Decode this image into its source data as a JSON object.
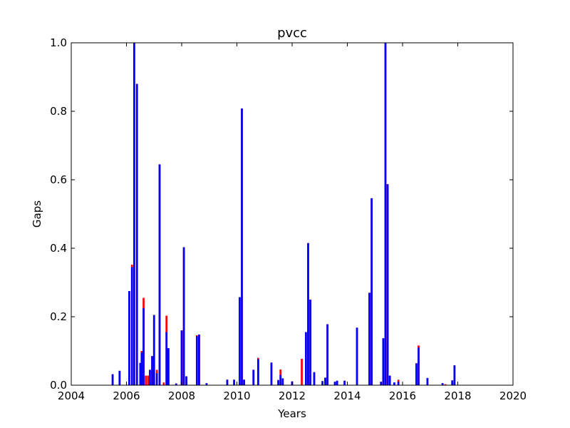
{
  "chart_data": {
    "type": "bar",
    "title": "pvcc",
    "xlabel": "Years",
    "ylabel": "Gaps",
    "xlim": [
      2004,
      2020
    ],
    "ylim": [
      0,
      1.0
    ],
    "xticks": [
      "2004",
      "2006",
      "2008",
      "2010",
      "2012",
      "2014",
      "2016",
      "2018",
      "2020"
    ],
    "yticks": [
      "0.0",
      "0.2",
      "0.4",
      "0.6",
      "0.8",
      "1.0"
    ],
    "grid": false,
    "legend": "none",
    "colors": {
      "series_red": "#ff0000",
      "series_blue": "#0000ff"
    },
    "bar_width_years": 0.07,
    "series": [
      {
        "color": "#ff0000",
        "points": [
          {
            "x": 2005.5,
            "y": 0.032
          },
          {
            "x": 2005.75,
            "y": 0.042
          },
          {
            "x": 2006.1,
            "y": 0.275
          },
          {
            "x": 2006.2,
            "y": 0.352
          },
          {
            "x": 2006.28,
            "y": 1.0
          },
          {
            "x": 2006.38,
            "y": 0.88
          },
          {
            "x": 2006.5,
            "y": 0.065
          },
          {
            "x": 2006.55,
            "y": 0.1
          },
          {
            "x": 2006.62,
            "y": 0.255
          },
          {
            "x": 2006.7,
            "y": 0.028
          },
          {
            "x": 2006.78,
            "y": 0.028
          },
          {
            "x": 2006.85,
            "y": 0.045
          },
          {
            "x": 2006.93,
            "y": 0.085
          },
          {
            "x": 2007.0,
            "y": 0.205
          },
          {
            "x": 2007.1,
            "y": 0.045
          },
          {
            "x": 2007.2,
            "y": 0.645
          },
          {
            "x": 2007.35,
            "y": 0.008
          },
          {
            "x": 2007.45,
            "y": 0.203
          },
          {
            "x": 2007.52,
            "y": 0.108
          },
          {
            "x": 2007.8,
            "y": 0.005
          },
          {
            "x": 2008.0,
            "y": 0.16
          },
          {
            "x": 2008.08,
            "y": 0.403
          },
          {
            "x": 2008.17,
            "y": 0.026
          },
          {
            "x": 2008.55,
            "y": 0.146
          },
          {
            "x": 2008.63,
            "y": 0.148
          },
          {
            "x": 2008.9,
            "y": 0.006
          },
          {
            "x": 2009.65,
            "y": 0.016
          },
          {
            "x": 2009.9,
            "y": 0.016
          },
          {
            "x": 2010.1,
            "y": 0.257
          },
          {
            "x": 2010.18,
            "y": 0.808
          },
          {
            "x": 2010.26,
            "y": 0.016
          },
          {
            "x": 2010.6,
            "y": 0.045
          },
          {
            "x": 2010.77,
            "y": 0.08
          },
          {
            "x": 2011.25,
            "y": 0.066
          },
          {
            "x": 2011.5,
            "y": 0.015
          },
          {
            "x": 2011.58,
            "y": 0.046
          },
          {
            "x": 2011.66,
            "y": 0.02
          },
          {
            "x": 2012.0,
            "y": 0.011
          },
          {
            "x": 2012.35,
            "y": 0.077
          },
          {
            "x": 2012.5,
            "y": 0.155
          },
          {
            "x": 2012.58,
            "y": 0.415
          },
          {
            "x": 2012.66,
            "y": 0.25
          },
          {
            "x": 2012.8,
            "y": 0.038
          },
          {
            "x": 2013.1,
            "y": 0.012
          },
          {
            "x": 2013.2,
            "y": 0.022
          },
          {
            "x": 2013.28,
            "y": 0.178
          },
          {
            "x": 2013.55,
            "y": 0.01
          },
          {
            "x": 2013.63,
            "y": 0.013
          },
          {
            "x": 2013.9,
            "y": 0.013
          },
          {
            "x": 2014.35,
            "y": 0.168
          },
          {
            "x": 2014.8,
            "y": 0.27
          },
          {
            "x": 2014.88,
            "y": 0.546
          },
          {
            "x": 2015.22,
            "y": 0.01
          },
          {
            "x": 2015.3,
            "y": 0.137
          },
          {
            "x": 2015.38,
            "y": 1.0
          },
          {
            "x": 2015.46,
            "y": 0.587
          },
          {
            "x": 2015.54,
            "y": 0.028
          },
          {
            "x": 2015.7,
            "y": 0.008
          },
          {
            "x": 2015.85,
            "y": 0.016
          },
          {
            "x": 2016.5,
            "y": 0.064
          },
          {
            "x": 2016.58,
            "y": 0.116
          },
          {
            "x": 2016.9,
            "y": 0.021
          },
          {
            "x": 2017.45,
            "y": 0.006
          },
          {
            "x": 2017.55,
            "y": 0.003
          },
          {
            "x": 2017.8,
            "y": 0.014
          },
          {
            "x": 2017.88,
            "y": 0.058
          }
        ]
      },
      {
        "color": "#0000ff",
        "points": [
          {
            "x": 2005.5,
            "y": 0.032
          },
          {
            "x": 2005.75,
            "y": 0.042
          },
          {
            "x": 2006.1,
            "y": 0.275
          },
          {
            "x": 2006.2,
            "y": 0.345
          },
          {
            "x": 2006.28,
            "y": 1.0
          },
          {
            "x": 2006.38,
            "y": 0.88
          },
          {
            "x": 2006.5,
            "y": 0.065
          },
          {
            "x": 2006.55,
            "y": 0.095
          },
          {
            "x": 2006.62,
            "y": 0.225
          },
          {
            "x": 2006.7,
            "y": 0.0
          },
          {
            "x": 2006.78,
            "y": 0.0
          },
          {
            "x": 2006.85,
            "y": 0.045
          },
          {
            "x": 2006.93,
            "y": 0.085
          },
          {
            "x": 2007.0,
            "y": 0.205
          },
          {
            "x": 2007.1,
            "y": 0.035
          },
          {
            "x": 2007.2,
            "y": 0.645
          },
          {
            "x": 2007.35,
            "y": 0.0
          },
          {
            "x": 2007.45,
            "y": 0.155
          },
          {
            "x": 2007.52,
            "y": 0.108
          },
          {
            "x": 2007.8,
            "y": 0.005
          },
          {
            "x": 2008.0,
            "y": 0.16
          },
          {
            "x": 2008.08,
            "y": 0.403
          },
          {
            "x": 2008.17,
            "y": 0.026
          },
          {
            "x": 2008.55,
            "y": 0.143
          },
          {
            "x": 2008.63,
            "y": 0.148
          },
          {
            "x": 2008.9,
            "y": 0.006
          },
          {
            "x": 2009.65,
            "y": 0.016
          },
          {
            "x": 2009.9,
            "y": 0.016
          },
          {
            "x": 2010.1,
            "y": 0.257
          },
          {
            "x": 2010.18,
            "y": 0.808
          },
          {
            "x": 2010.26,
            "y": 0.016
          },
          {
            "x": 2010.6,
            "y": 0.045
          },
          {
            "x": 2010.77,
            "y": 0.076
          },
          {
            "x": 2011.25,
            "y": 0.066
          },
          {
            "x": 2011.5,
            "y": 0.015
          },
          {
            "x": 2011.58,
            "y": 0.03
          },
          {
            "x": 2011.66,
            "y": 0.02
          },
          {
            "x": 2012.0,
            "y": 0.011
          },
          {
            "x": 2012.35,
            "y": 0.0
          },
          {
            "x": 2012.5,
            "y": 0.155
          },
          {
            "x": 2012.58,
            "y": 0.415
          },
          {
            "x": 2012.66,
            "y": 0.25
          },
          {
            "x": 2012.8,
            "y": 0.038
          },
          {
            "x": 2013.1,
            "y": 0.012
          },
          {
            "x": 2013.2,
            "y": 0.022
          },
          {
            "x": 2013.28,
            "y": 0.178
          },
          {
            "x": 2013.55,
            "y": 0.01
          },
          {
            "x": 2013.63,
            "y": 0.013
          },
          {
            "x": 2013.9,
            "y": 0.013
          },
          {
            "x": 2014.35,
            "y": 0.168
          },
          {
            "x": 2014.8,
            "y": 0.27
          },
          {
            "x": 2014.88,
            "y": 0.546
          },
          {
            "x": 2015.22,
            "y": 0.01
          },
          {
            "x": 2015.3,
            "y": 0.137
          },
          {
            "x": 2015.38,
            "y": 1.0
          },
          {
            "x": 2015.46,
            "y": 0.587
          },
          {
            "x": 2015.54,
            "y": 0.028
          },
          {
            "x": 2015.7,
            "y": 0.008
          },
          {
            "x": 2015.85,
            "y": 0.01
          },
          {
            "x": 2016.5,
            "y": 0.064
          },
          {
            "x": 2016.58,
            "y": 0.11
          },
          {
            "x": 2016.9,
            "y": 0.021
          },
          {
            "x": 2017.45,
            "y": 0.006
          },
          {
            "x": 2017.55,
            "y": 0.0
          },
          {
            "x": 2017.8,
            "y": 0.014
          },
          {
            "x": 2017.88,
            "y": 0.058
          }
        ]
      }
    ]
  }
}
